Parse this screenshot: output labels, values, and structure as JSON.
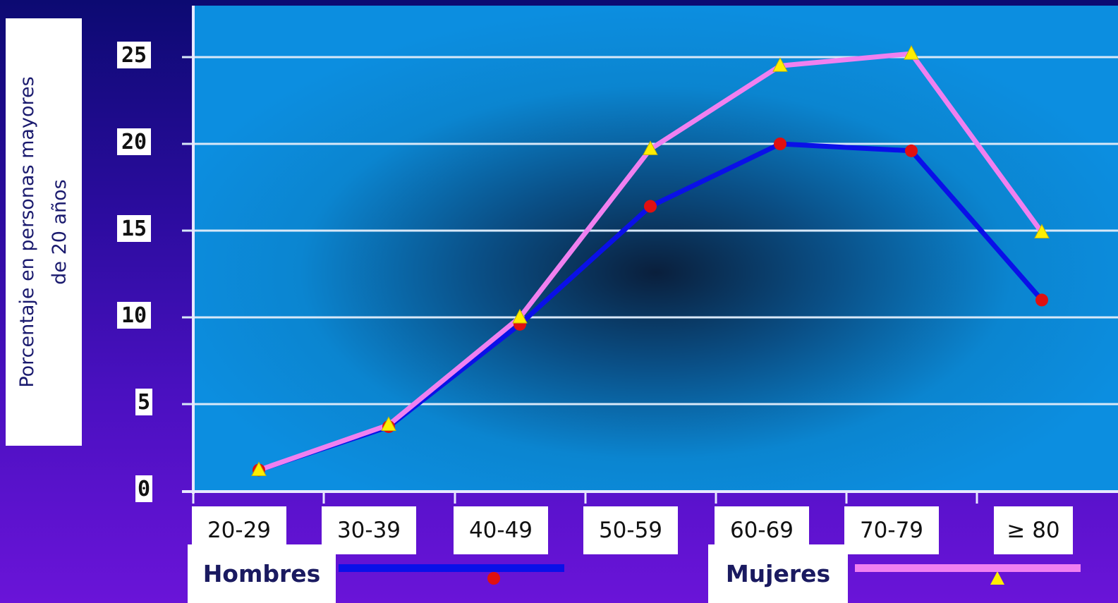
{
  "chart_data": {
    "type": "line",
    "ylabel_lines": [
      "Porcentaje en personas mayores",
      "de 20 años"
    ],
    "categories": [
      "20-29",
      "30-39",
      "40-49",
      "50-59",
      "60-69",
      "70-79",
      "≥ 80"
    ],
    "yticks": [
      "0",
      "5",
      "10",
      "15",
      "20",
      "25"
    ],
    "ylim": [
      0,
      25
    ],
    "grid": true,
    "series": [
      {
        "name": "Hombres",
        "values": [
          1.2,
          3.7,
          9.6,
          16.4,
          20.0,
          19.6,
          11.0
        ],
        "color": "#0a10e8",
        "marker": "circle",
        "marker_color": "#e01010"
      },
      {
        "name": "Mujeres",
        "values": [
          1.2,
          3.8,
          10.0,
          19.7,
          24.5,
          25.2,
          14.9
        ],
        "color": "#f080f0",
        "marker": "triangle",
        "marker_color": "#ffee00"
      }
    ]
  }
}
